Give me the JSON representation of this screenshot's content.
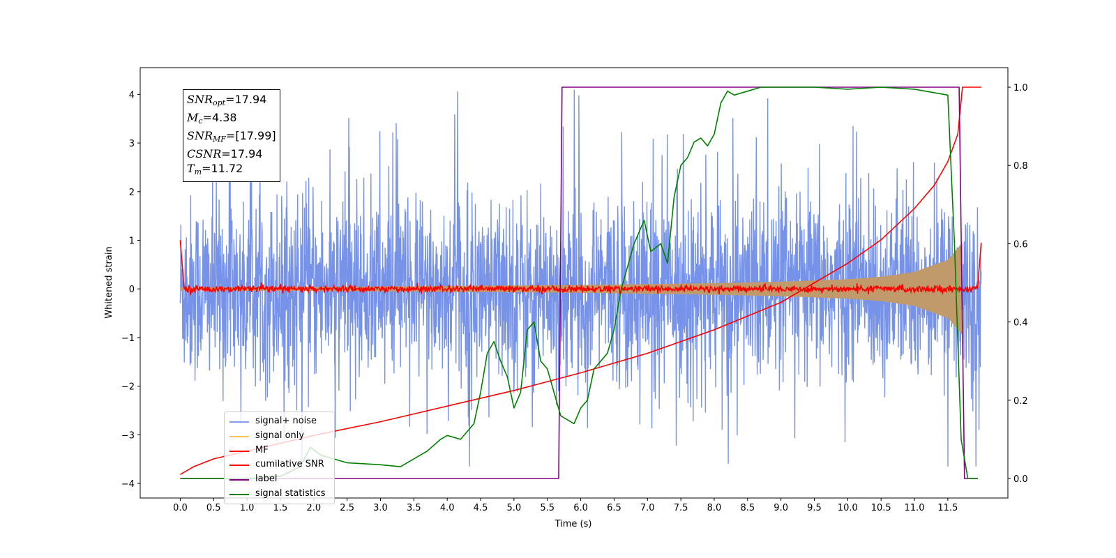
{
  "chart_data": {
    "type": "line",
    "title": "",
    "xlabel": "Time (s)",
    "ylabel": "Whitened strain",
    "x_ticks": [
      "0.0",
      "0.5",
      "1.0",
      "1.5",
      "2.0",
      "2.5",
      "3.0",
      "3.5",
      "4.0",
      "4.5",
      "5.0",
      "5.5",
      "6.0",
      "6.5",
      "7.0",
      "7.5",
      "8.0",
      "8.5",
      "9.0",
      "9.5",
      "10.0",
      "10.5",
      "11.0",
      "11.5"
    ],
    "y_ticks_left": [
      "4",
      "3",
      "2",
      "1",
      "0",
      "−1",
      "−2",
      "−3",
      "−4"
    ],
    "y_ticks_right": [
      "1.0",
      "0.8",
      "0.6",
      "0.4",
      "0.2",
      "0.0"
    ],
    "xlim": [
      -0.6,
      12.4
    ],
    "ylim_left": [
      -4.3,
      4.55
    ],
    "ylim_right": [
      -0.05,
      1.05
    ],
    "legend_position": "lower-left",
    "grid": false,
    "annotation": {
      "snr_opt": {
        "base": "SNR",
        "sub": "opt",
        "value": "=17.94"
      },
      "mc": {
        "base": "M",
        "sub": "c",
        "value": "=4.38"
      },
      "snr_mf": {
        "base": "SNR",
        "sub": "MF",
        "value": "=[17.99]"
      },
      "csnr": {
        "base": "CSNR",
        "value": "=17.94"
      },
      "tm": {
        "base": "T",
        "sub": "m",
        "value": "=11.72"
      }
    },
    "series": [
      {
        "name": "signal+ noise",
        "color": "#4169e1",
        "axis": "left",
        "kind": "noise_band",
        "envelope_top": 2.3,
        "envelope_bottom": -2.3,
        "peak_top": 4.15,
        "peak_bottom": -3.65
      },
      {
        "name": "signal only",
        "color": "#ffa500",
        "axis": "left",
        "kind": "chirp",
        "x": [
          0.0,
          2.0,
          4.0,
          6.0,
          8.0,
          9.0,
          10.0,
          10.5,
          11.0,
          11.5,
          11.72,
          12.0
        ],
        "amplitude": [
          0.03,
          0.04,
          0.06,
          0.08,
          0.12,
          0.15,
          0.2,
          0.25,
          0.35,
          0.6,
          0.95,
          0.0
        ]
      },
      {
        "name": "MF",
        "color": "#ff0000",
        "axis": "left",
        "kind": "mf_noise",
        "x": [
          0.0,
          0.05,
          11.95,
          12.0
        ],
        "y": [
          1.0,
          0.0,
          0.0,
          0.95
        ]
      },
      {
        "name": "cumilative SNR",
        "color": "#ff0000",
        "axis": "right",
        "x": [
          0.0,
          0.2,
          0.5,
          1.0,
          2.0,
          3.0,
          4.0,
          5.0,
          6.0,
          7.0,
          8.0,
          9.0,
          9.5,
          10.0,
          10.5,
          11.0,
          11.3,
          11.5,
          11.65,
          11.72,
          12.0
        ],
        "y": [
          0.01,
          0.03,
          0.05,
          0.07,
          0.11,
          0.145,
          0.185,
          0.225,
          0.27,
          0.32,
          0.38,
          0.45,
          0.5,
          0.55,
          0.61,
          0.69,
          0.75,
          0.81,
          0.88,
          1.0,
          1.0
        ]
      },
      {
        "name": "label",
        "color": "#800080",
        "axis": "right",
        "x": [
          0.0,
          5.67,
          5.72,
          11.67,
          11.75,
          11.95
        ],
        "y": [
          0.0,
          0.0,
          1.0,
          1.0,
          0.0,
          0.0
        ]
      },
      {
        "name": "signal statistics",
        "color": "#008000",
        "axis": "right",
        "x": [
          0.0,
          0.5,
          1.0,
          1.5,
          1.8,
          1.95,
          2.1,
          2.3,
          2.5,
          3.0,
          3.3,
          3.5,
          3.7,
          3.9,
          4.0,
          4.2,
          4.4,
          4.5,
          4.6,
          4.7,
          4.8,
          4.9,
          5.0,
          5.1,
          5.2,
          5.3,
          5.4,
          5.5,
          5.6,
          5.7,
          5.9,
          6.0,
          6.1,
          6.2,
          6.3,
          6.4,
          6.5,
          6.6,
          6.8,
          6.95,
          7.05,
          7.2,
          7.3,
          7.4,
          7.5,
          7.6,
          7.7,
          7.8,
          7.9,
          8.0,
          8.1,
          8.2,
          8.3,
          8.5,
          8.7,
          9.0,
          9.5,
          10.0,
          10.5,
          11.0,
          11.5,
          11.6,
          11.7,
          11.8,
          11.95
        ],
        "y": [
          0.0,
          0.0,
          0.0,
          0.005,
          0.03,
          0.08,
          0.06,
          0.05,
          0.04,
          0.035,
          0.03,
          0.05,
          0.07,
          0.1,
          0.11,
          0.1,
          0.14,
          0.22,
          0.32,
          0.35,
          0.3,
          0.26,
          0.18,
          0.22,
          0.38,
          0.4,
          0.3,
          0.28,
          0.22,
          0.16,
          0.14,
          0.18,
          0.2,
          0.28,
          0.3,
          0.32,
          0.38,
          0.48,
          0.6,
          0.66,
          0.58,
          0.6,
          0.55,
          0.72,
          0.8,
          0.82,
          0.86,
          0.87,
          0.85,
          0.88,
          0.96,
          0.99,
          0.98,
          0.99,
          1.0,
          1.0,
          1.0,
          0.995,
          1.0,
          0.995,
          0.98,
          0.6,
          0.1,
          0.0,
          0.0
        ]
      }
    ]
  }
}
